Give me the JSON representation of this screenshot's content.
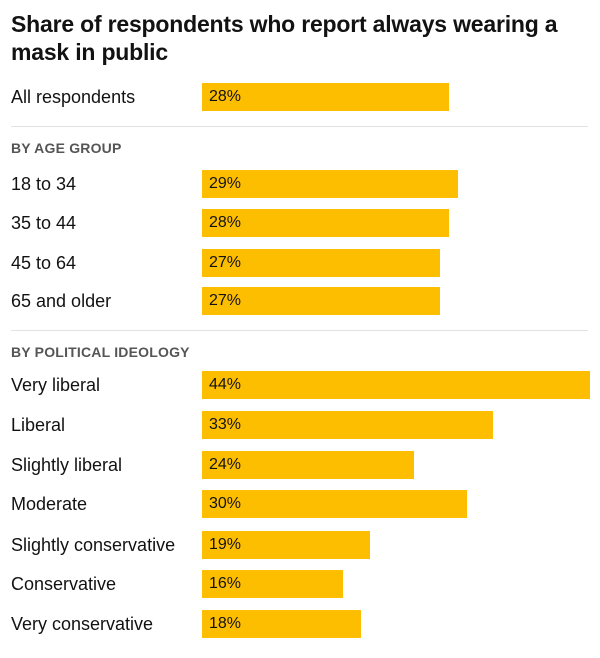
{
  "colors": {
    "bar": "#fdbe00",
    "text": "#121212",
    "header": "#555555"
  },
  "chart_data": {
    "type": "bar",
    "orientation": "horizontal",
    "title": "Share of respondents who report always wearing a mask in public",
    "xlim": [
      0,
      44
    ],
    "groups": [
      {
        "header": "",
        "rows": [
          {
            "category": "All respondents",
            "value": 28,
            "label": "28%"
          }
        ]
      },
      {
        "header": "BY AGE GROUP",
        "rows": [
          {
            "category": "18 to 34",
            "value": 29,
            "label": "29%"
          },
          {
            "category": "35 to 44",
            "value": 28,
            "label": "28%"
          },
          {
            "category": "45 to 64",
            "value": 27,
            "label": "27%"
          },
          {
            "category": "65 and older",
            "value": 27,
            "label": "27%"
          }
        ]
      },
      {
        "header": "BY POLITICAL IDEOLOGY",
        "rows": [
          {
            "category": "Very liberal",
            "value": 44,
            "label": "44%"
          },
          {
            "category": "Liberal",
            "value": 33,
            "label": "33%"
          },
          {
            "category": "Slightly liberal",
            "value": 24,
            "label": "24%"
          },
          {
            "category": "Moderate",
            "value": 30,
            "label": "30%"
          },
          {
            "category": "Slightly conservative",
            "value": 19,
            "label": "19%"
          },
          {
            "category": "Conservative",
            "value": 16,
            "label": "16%"
          },
          {
            "category": "Very conservative",
            "value": 18,
            "label": "18%"
          }
        ]
      }
    ]
  }
}
